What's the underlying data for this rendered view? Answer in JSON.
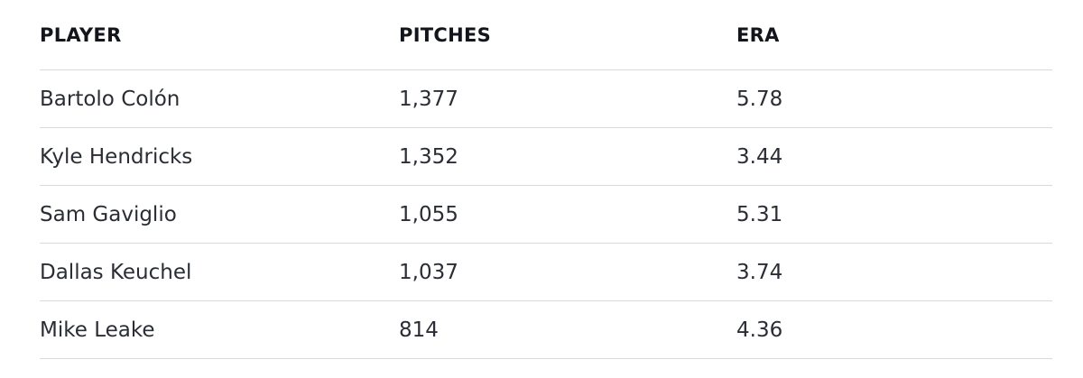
{
  "table": {
    "headers": [
      "PLAYER",
      "PITCHES",
      "ERA"
    ],
    "rows": [
      [
        "Bartolo Colón",
        "1,377",
        "5.78"
      ],
      [
        "Kyle Hendricks",
        "1,352",
        "3.44"
      ],
      [
        "Sam Gaviglio",
        "1,055",
        "5.31"
      ],
      [
        "Dallas Keuchel",
        "1,037",
        "3.74"
      ],
      [
        "Mike Leake",
        "814",
        "4.36"
      ]
    ]
  }
}
